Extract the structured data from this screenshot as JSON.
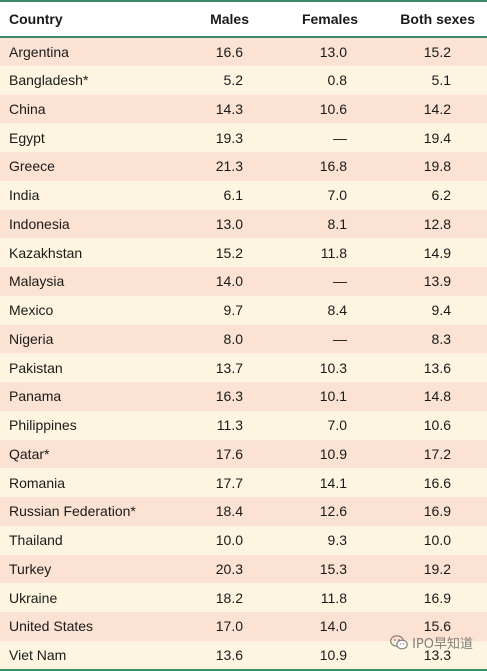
{
  "table": {
    "headers": {
      "country": "Country",
      "males": "Males",
      "females": "Females",
      "both": "Both sexes"
    },
    "rows": [
      {
        "country": "Argentina",
        "males": "16.6",
        "females": "13.0",
        "both": "15.2"
      },
      {
        "country": "Bangladesh*",
        "males": "5.2",
        "females": "0.8",
        "both": "5.1"
      },
      {
        "country": "China",
        "males": "14.3",
        "females": "10.6",
        "both": "14.2"
      },
      {
        "country": "Egypt",
        "males": "19.3",
        "females": "—",
        "both": "19.4"
      },
      {
        "country": "Greece",
        "males": "21.3",
        "females": "16.8",
        "both": "19.8"
      },
      {
        "country": "India",
        "males": "6.1",
        "females": "7.0",
        "both": "6.2"
      },
      {
        "country": "Indonesia",
        "males": "13.0",
        "females": "8.1",
        "both": "12.8"
      },
      {
        "country": "Kazakhstan",
        "males": "15.2",
        "females": "11.8",
        "both": "14.9"
      },
      {
        "country": "Malaysia",
        "males": "14.0",
        "females": "—",
        "both": "13.9"
      },
      {
        "country": "Mexico",
        "males": "9.7",
        "females": "8.4",
        "both": "9.4"
      },
      {
        "country": "Nigeria",
        "males": "8.0",
        "females": "—",
        "both": "8.3"
      },
      {
        "country": "Pakistan",
        "males": "13.7",
        "females": "10.3",
        "both": "13.6"
      },
      {
        "country": "Panama",
        "males": "16.3",
        "females": "10.1",
        "both": "14.8"
      },
      {
        "country": "Philippines",
        "males": "11.3",
        "females": "7.0",
        "both": "10.6"
      },
      {
        "country": "Qatar*",
        "males": "17.6",
        "females": "10.9",
        "both": "17.2"
      },
      {
        "country": "Romania",
        "males": "17.7",
        "females": "14.1",
        "both": "16.6"
      },
      {
        "country": "Russian Federation*",
        "males": "18.4",
        "females": "12.6",
        "both": "16.9"
      },
      {
        "country": "Thailand",
        "males": "10.0",
        "females": "9.3",
        "both": "10.0"
      },
      {
        "country": "Turkey",
        "males": "20.3",
        "females": "15.3",
        "both": "19.2"
      },
      {
        "country": "Ukraine",
        "males": "18.2",
        "females": "11.8",
        "both": "16.9"
      },
      {
        "country": "United States",
        "males": "17.0",
        "females": "14.0",
        "both": "15.6"
      },
      {
        "country": "Viet Nam",
        "males": "13.6",
        "females": "10.9",
        "both": "13.3"
      }
    ]
  },
  "watermark": {
    "text": "IPO早知道",
    "icon": "wechat-icon"
  },
  "colors": {
    "row_odd": "#fbe2d2",
    "row_even": "#fdf5e0",
    "rule": "#3a8a6a"
  }
}
